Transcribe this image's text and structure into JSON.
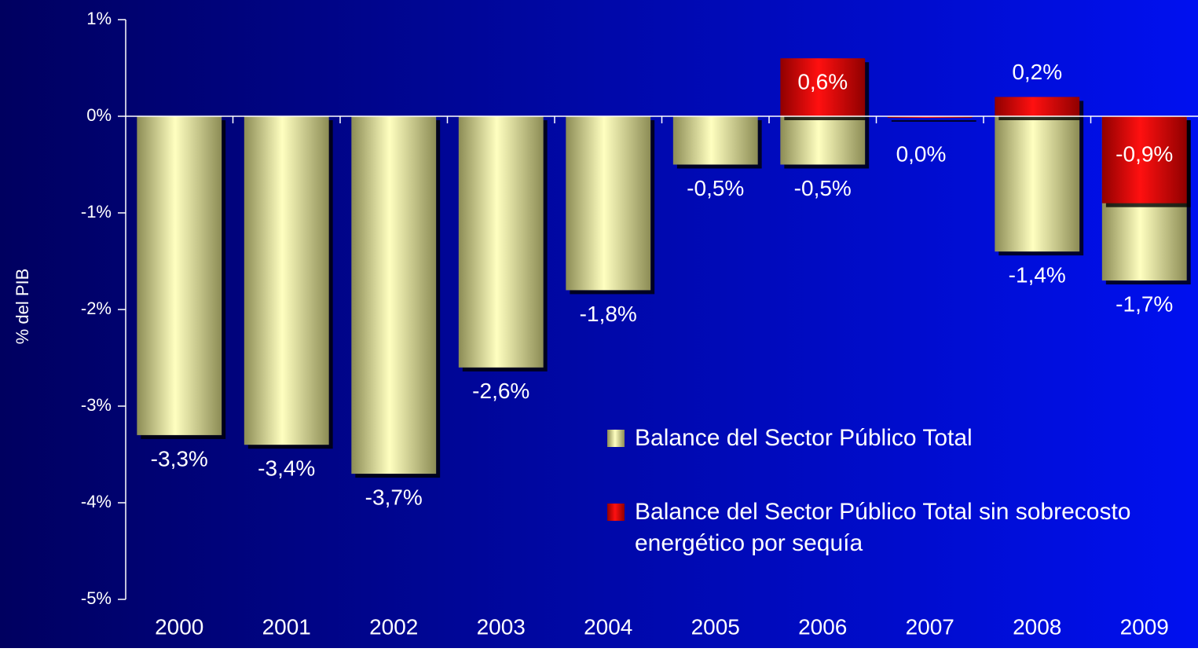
{
  "chart_data": {
    "type": "bar",
    "y_label": "% del PIB",
    "categories": [
      "2000",
      "2001",
      "2002",
      "2003",
      "2004",
      "2005",
      "2006",
      "2007",
      "2008",
      "2009"
    ],
    "series": [
      {
        "name": "Balance del Sector Público  Total",
        "color": "#e8e8a0",
        "values": [
          -3.3,
          -3.4,
          -3.7,
          -2.6,
          -1.8,
          -0.5,
          -0.5,
          null,
          -1.4,
          -1.7
        ],
        "value_labels": [
          "-3,3%",
          "-3,4%",
          "-3,7%",
          "-2,6%",
          "-1,8%",
          "-0,5%",
          "-0,5%",
          null,
          "-1,4%",
          "-1,7%"
        ]
      },
      {
        "name": "Balance del Sector Público  Total sin sobrecosto energético por sequía",
        "color": "#e00000",
        "values": [
          null,
          null,
          null,
          null,
          null,
          null,
          0.6,
          0.0,
          0.2,
          -0.9
        ],
        "value_labels": [
          null,
          null,
          null,
          null,
          null,
          null,
          "0,6%",
          "0,0%",
          "0,2%",
          "-0,9%"
        ]
      }
    ],
    "ylim": [
      -5,
      1
    ],
    "yticks": [
      {
        "value": 1,
        "label": "1%"
      },
      {
        "value": 0,
        "label": "0%"
      },
      {
        "value": -1,
        "label": "-1%"
      },
      {
        "value": -2,
        "label": "-2%"
      },
      {
        "value": -3,
        "label": "-3%"
      },
      {
        "value": -4,
        "label": "-4%"
      },
      {
        "value": -5,
        "label": "-5%"
      }
    ]
  }
}
